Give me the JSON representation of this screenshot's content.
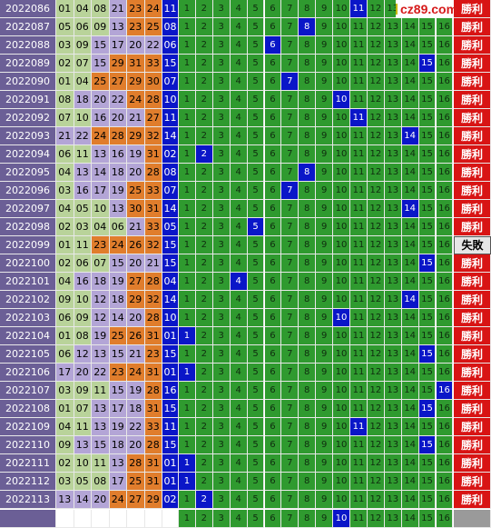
{
  "logo_text": "cz89.com",
  "result_labels": {
    "win": "勝利",
    "lose": "失敗"
  },
  "blue_numbers": [
    "1",
    "2",
    "3",
    "4",
    "5",
    "6",
    "7",
    "8",
    "9",
    "10",
    "11",
    "12",
    "13",
    "14",
    "15",
    "16"
  ],
  "rows": [
    {
      "issue": "2022086",
      "reds": [
        "01",
        "04",
        "08",
        "21",
        "23",
        "24"
      ],
      "blue": "11",
      "hit": 11,
      "result": "win"
    },
    {
      "issue": "2022087",
      "reds": [
        "05",
        "06",
        "09",
        "13",
        "23",
        "25"
      ],
      "blue": "08",
      "hit": 8,
      "result": "win"
    },
    {
      "issue": "2022088",
      "reds": [
        "03",
        "09",
        "15",
        "17",
        "20",
        "22"
      ],
      "blue": "06",
      "hit": 6,
      "result": "win"
    },
    {
      "issue": "2022089",
      "reds": [
        "02",
        "07",
        "15",
        "29",
        "31",
        "33"
      ],
      "blue": "15",
      "hit": 15,
      "result": "win"
    },
    {
      "issue": "2022090",
      "reds": [
        "01",
        "04",
        "25",
        "27",
        "29",
        "30"
      ],
      "blue": "07",
      "hit": 7,
      "result": "win"
    },
    {
      "issue": "2022091",
      "reds": [
        "08",
        "18",
        "20",
        "22",
        "24",
        "28"
      ],
      "blue": "10",
      "hit": 10,
      "result": "win"
    },
    {
      "issue": "2022092",
      "reds": [
        "07",
        "10",
        "16",
        "20",
        "21",
        "27"
      ],
      "blue": "11",
      "hit": 11,
      "result": "win"
    },
    {
      "issue": "2022093",
      "reds": [
        "21",
        "22",
        "24",
        "28",
        "29",
        "32"
      ],
      "blue": "14",
      "hit": 14,
      "result": "win"
    },
    {
      "issue": "2022094",
      "reds": [
        "06",
        "11",
        "13",
        "16",
        "19",
        "31"
      ],
      "blue": "02",
      "hit": 2,
      "result": "win"
    },
    {
      "issue": "2022095",
      "reds": [
        "04",
        "13",
        "14",
        "18",
        "20",
        "28"
      ],
      "blue": "08",
      "hit": 8,
      "result": "win"
    },
    {
      "issue": "2022096",
      "reds": [
        "03",
        "16",
        "17",
        "19",
        "25",
        "33"
      ],
      "blue": "07",
      "hit": 7,
      "result": "win"
    },
    {
      "issue": "2022097",
      "reds": [
        "04",
        "05",
        "10",
        "13",
        "30",
        "31"
      ],
      "blue": "14",
      "hit": 14,
      "result": "win"
    },
    {
      "issue": "2022098",
      "reds": [
        "02",
        "03",
        "04",
        "06",
        "21",
        "33"
      ],
      "blue": "05",
      "hit": 5,
      "result": "win"
    },
    {
      "issue": "2022099",
      "reds": [
        "01",
        "11",
        "23",
        "24",
        "26",
        "32"
      ],
      "blue": "15",
      "hit": null,
      "result": "lose"
    },
    {
      "issue": "2022100",
      "reds": [
        "02",
        "06",
        "07",
        "15",
        "20",
        "21"
      ],
      "blue": "15",
      "hit": 15,
      "result": "win"
    },
    {
      "issue": "2022101",
      "reds": [
        "04",
        "16",
        "18",
        "19",
        "27",
        "28"
      ],
      "blue": "04",
      "hit": 4,
      "result": "win"
    },
    {
      "issue": "2022102",
      "reds": [
        "09",
        "10",
        "12",
        "18",
        "29",
        "32"
      ],
      "blue": "14",
      "hit": 14,
      "result": "win"
    },
    {
      "issue": "2022103",
      "reds": [
        "06",
        "09",
        "12",
        "14",
        "20",
        "28"
      ],
      "blue": "10",
      "hit": 10,
      "result": "win"
    },
    {
      "issue": "2022104",
      "reds": [
        "01",
        "08",
        "19",
        "25",
        "26",
        "31"
      ],
      "blue": "01",
      "hit": 1,
      "result": "win"
    },
    {
      "issue": "2022105",
      "reds": [
        "06",
        "12",
        "13",
        "15",
        "21",
        "23"
      ],
      "blue": "15",
      "hit": 15,
      "result": "win"
    },
    {
      "issue": "2022106",
      "reds": [
        "17",
        "20",
        "22",
        "23",
        "24",
        "31"
      ],
      "blue": "01",
      "hit": 1,
      "result": "win"
    },
    {
      "issue": "2022107",
      "reds": [
        "03",
        "09",
        "11",
        "15",
        "19",
        "28"
      ],
      "blue": "16",
      "hit": 16,
      "result": "win"
    },
    {
      "issue": "2022108",
      "reds": [
        "01",
        "07",
        "13",
        "17",
        "18",
        "31"
      ],
      "blue": "15",
      "hit": 15,
      "result": "win"
    },
    {
      "issue": "2022109",
      "reds": [
        "04",
        "11",
        "13",
        "19",
        "22",
        "33"
      ],
      "blue": "11",
      "hit": 11,
      "result": "win"
    },
    {
      "issue": "2022110",
      "reds": [
        "09",
        "13",
        "15",
        "18",
        "20",
        "28"
      ],
      "blue": "15",
      "hit": 15,
      "result": "win"
    },
    {
      "issue": "2022111",
      "reds": [
        "02",
        "10",
        "11",
        "13",
        "28",
        "31"
      ],
      "blue": "01",
      "hit": 1,
      "result": "win"
    },
    {
      "issue": "2022112",
      "reds": [
        "03",
        "05",
        "08",
        "17",
        "25",
        "31"
      ],
      "blue": "01",
      "hit": 1,
      "result": "win"
    },
    {
      "issue": "2022113",
      "reds": [
        "13",
        "14",
        "20",
        "24",
        "27",
        "29"
      ],
      "blue": "02",
      "hit": 2,
      "result": "win"
    }
  ],
  "prediction_row": {
    "hit": 10
  }
}
